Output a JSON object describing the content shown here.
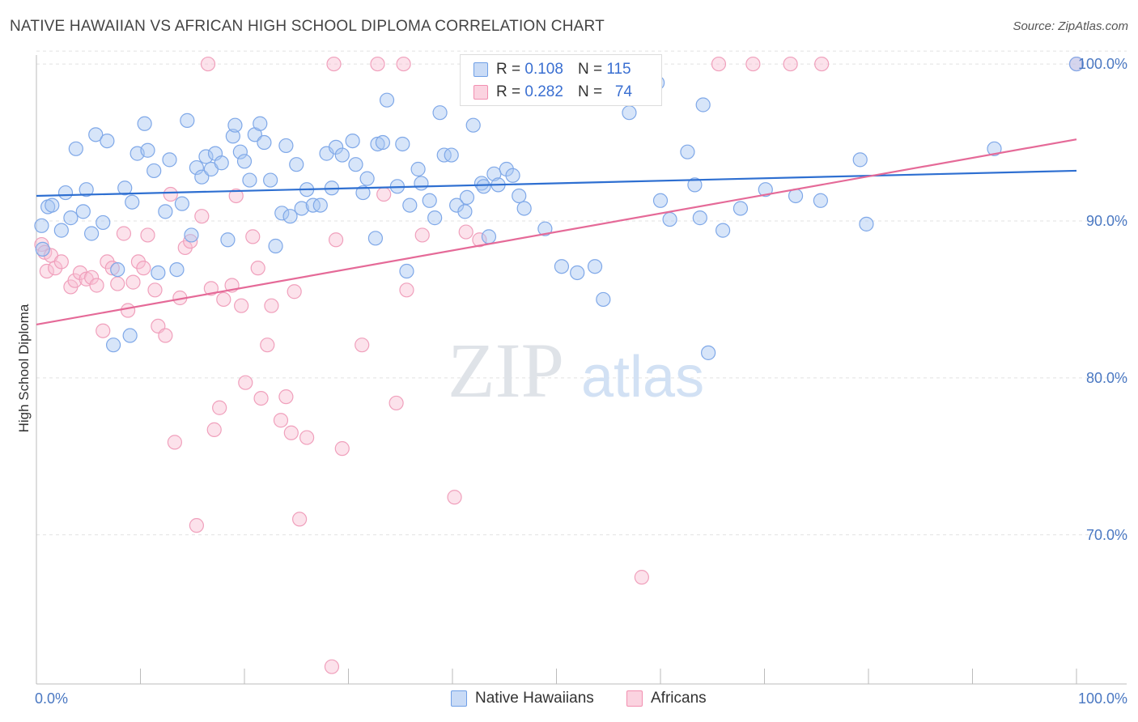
{
  "title": "NATIVE HAWAIIAN VS AFRICAN HIGH SCHOOL DIPLOMA CORRELATION CHART",
  "source": "Source: ZipAtlas.com",
  "watermark": {
    "zip": "ZIP",
    "atlas": "atlas"
  },
  "stats": [
    {
      "r_label": "R = ",
      "r_value": "0.108",
      "n_label": "N = ",
      "n_value": "115",
      "color": "#6f9fe6"
    },
    {
      "r_label": "R = ",
      "r_value": "0.282",
      "n_label": "N = ",
      "n_value": "74",
      "color": "#f28fb0"
    }
  ],
  "legend": [
    {
      "label": "Native Hawaiians",
      "color": "#6f9fe6"
    },
    {
      "label": "Africans",
      "color": "#f28fb0"
    }
  ],
  "chart_data": {
    "type": "scatter",
    "title": "NATIVE HAWAIIAN VS AFRICAN HIGH SCHOOL DIPLOMA CORRELATION CHART",
    "xlabel": "",
    "ylabel": "High School Diploma",
    "xlim": [
      0,
      100
    ],
    "ylim": [
      60.5,
      101.5
    ],
    "x_tick_labels": [
      "0.0%",
      "100.0%"
    ],
    "y_ticks": [
      70,
      80,
      90,
      100
    ],
    "y_tick_labels": [
      "70.0%",
      "80.0%",
      "90.0%",
      "100.0%"
    ],
    "grid": true,
    "legend_position": "bottom-center",
    "series": [
      {
        "name": "Native Hawaiians",
        "color": "#6f9fe6",
        "trend": {
          "x": [
            0,
            100
          ],
          "y": [
            91.6,
            93.2
          ]
        },
        "points": [
          [
            0.5,
            89.7
          ],
          [
            0.6,
            88.2
          ],
          [
            1.1,
            90.9
          ],
          [
            1.5,
            91.0
          ],
          [
            2.4,
            89.4
          ],
          [
            2.8,
            91.8
          ],
          [
            3.3,
            90.2
          ],
          [
            3.8,
            94.6
          ],
          [
            4.5,
            90.6
          ],
          [
            4.8,
            92.0
          ],
          [
            5.3,
            89.2
          ],
          [
            5.7,
            95.5
          ],
          [
            6.4,
            89.9
          ],
          [
            6.8,
            95.1
          ],
          [
            7.4,
            82.1
          ],
          [
            7.8,
            86.9
          ],
          [
            8.5,
            92.1
          ],
          [
            9.0,
            82.7
          ],
          [
            9.2,
            91.2
          ],
          [
            9.7,
            94.3
          ],
          [
            10.4,
            96.2
          ],
          [
            10.7,
            94.5
          ],
          [
            11.3,
            93.2
          ],
          [
            11.7,
            86.7
          ],
          [
            12.4,
            90.6
          ],
          [
            12.8,
            93.9
          ],
          [
            13.5,
            86.9
          ],
          [
            14.0,
            91.1
          ],
          [
            14.5,
            96.4
          ],
          [
            14.9,
            89.1
          ],
          [
            15.4,
            93.4
          ],
          [
            15.9,
            92.8
          ],
          [
            16.3,
            94.1
          ],
          [
            16.8,
            93.3
          ],
          [
            17.2,
            94.3
          ],
          [
            17.8,
            93.7
          ],
          [
            18.4,
            88.8
          ],
          [
            18.9,
            95.4
          ],
          [
            19.1,
            96.1
          ],
          [
            19.6,
            94.4
          ],
          [
            20.0,
            93.8
          ],
          [
            20.5,
            92.6
          ],
          [
            21.0,
            95.5
          ],
          [
            21.5,
            96.2
          ],
          [
            21.9,
            95.0
          ],
          [
            22.5,
            92.6
          ],
          [
            23.0,
            88.4
          ],
          [
            23.6,
            90.5
          ],
          [
            24.0,
            94.8
          ],
          [
            24.4,
            90.3
          ],
          [
            25.0,
            93.6
          ],
          [
            25.5,
            90.8
          ],
          [
            26.0,
            92.0
          ],
          [
            26.6,
            91.0
          ],
          [
            27.3,
            91.0
          ],
          [
            27.9,
            94.3
          ],
          [
            28.4,
            92.1
          ],
          [
            28.8,
            94.7
          ],
          [
            29.4,
            94.2
          ],
          [
            30.4,
            95.1
          ],
          [
            30.7,
            93.6
          ],
          [
            31.4,
            91.8
          ],
          [
            31.8,
            92.7
          ],
          [
            32.6,
            88.9
          ],
          [
            32.8,
            94.9
          ],
          [
            33.3,
            95.0
          ],
          [
            33.7,
            97.7
          ],
          [
            34.7,
            92.2
          ],
          [
            35.2,
            94.9
          ],
          [
            35.6,
            86.8
          ],
          [
            35.9,
            91.0
          ],
          [
            36.7,
            93.3
          ],
          [
            37.0,
            92.4
          ],
          [
            37.8,
            91.3
          ],
          [
            38.3,
            90.2
          ],
          [
            38.8,
            96.9
          ],
          [
            39.2,
            94.2
          ],
          [
            39.9,
            94.2
          ],
          [
            40.4,
            91.0
          ],
          [
            41.2,
            90.6
          ],
          [
            41.4,
            91.5
          ],
          [
            42.0,
            96.1
          ],
          [
            42.8,
            92.4
          ],
          [
            43.0,
            92.2
          ],
          [
            43.5,
            89.0
          ],
          [
            44.0,
            93.0
          ],
          [
            44.4,
            92.3
          ],
          [
            45.2,
            93.3
          ],
          [
            45.8,
            92.9
          ],
          [
            46.4,
            91.6
          ],
          [
            46.9,
            90.8
          ],
          [
            48.9,
            89.5
          ],
          [
            50.5,
            87.1
          ],
          [
            52.0,
            86.7
          ],
          [
            53.7,
            87.1
          ],
          [
            54.5,
            85.0
          ],
          [
            57.0,
            96.9
          ],
          [
            59.3,
            100.0
          ],
          [
            59.7,
            98.8
          ],
          [
            60.0,
            91.3
          ],
          [
            60.9,
            90.1
          ],
          [
            62.6,
            94.4
          ],
          [
            63.3,
            92.3
          ],
          [
            63.8,
            90.2
          ],
          [
            64.1,
            97.4
          ],
          [
            64.6,
            81.6
          ],
          [
            66.0,
            89.4
          ],
          [
            67.7,
            90.8
          ],
          [
            70.1,
            92.0
          ],
          [
            73.0,
            91.6
          ],
          [
            75.4,
            91.3
          ],
          [
            79.2,
            93.9
          ],
          [
            79.8,
            89.8
          ],
          [
            92.1,
            94.6
          ],
          [
            100.0,
            100.0
          ]
        ]
      },
      {
        "name": "Africans",
        "color": "#f28fb0",
        "trend": {
          "x": [
            0,
            100
          ],
          "y": [
            83.4,
            95.2
          ]
        },
        "points": [
          [
            0.5,
            88.5
          ],
          [
            0.8,
            88.0
          ],
          [
            1.0,
            86.8
          ],
          [
            1.4,
            87.8
          ],
          [
            1.8,
            87.0
          ],
          [
            2.4,
            87.4
          ],
          [
            3.3,
            85.8
          ],
          [
            3.7,
            86.2
          ],
          [
            4.2,
            86.7
          ],
          [
            4.8,
            86.3
          ],
          [
            5.3,
            86.4
          ],
          [
            5.8,
            85.9
          ],
          [
            6.4,
            83.0
          ],
          [
            6.8,
            87.4
          ],
          [
            7.3,
            87.0
          ],
          [
            7.8,
            86.0
          ],
          [
            8.4,
            89.2
          ],
          [
            8.8,
            84.3
          ],
          [
            9.3,
            86.1
          ],
          [
            9.8,
            87.4
          ],
          [
            10.3,
            87.0
          ],
          [
            10.7,
            89.1
          ],
          [
            11.4,
            85.6
          ],
          [
            11.7,
            83.3
          ],
          [
            12.4,
            82.7
          ],
          [
            12.9,
            91.7
          ],
          [
            13.3,
            75.9
          ],
          [
            13.8,
            85.1
          ],
          [
            14.3,
            88.3
          ],
          [
            14.8,
            88.7
          ],
          [
            15.4,
            70.6
          ],
          [
            15.9,
            90.3
          ],
          [
            16.5,
            100.0
          ],
          [
            16.8,
            85.7
          ],
          [
            17.1,
            76.7
          ],
          [
            17.6,
            78.1
          ],
          [
            18.0,
            85.0
          ],
          [
            18.8,
            85.9
          ],
          [
            19.2,
            91.6
          ],
          [
            19.7,
            84.6
          ],
          [
            20.1,
            79.7
          ],
          [
            20.8,
            89.0
          ],
          [
            21.3,
            87.0
          ],
          [
            21.6,
            78.7
          ],
          [
            22.2,
            82.1
          ],
          [
            22.6,
            84.6
          ],
          [
            23.5,
            77.3
          ],
          [
            24.0,
            78.8
          ],
          [
            24.5,
            76.5
          ],
          [
            24.8,
            85.5
          ],
          [
            25.3,
            71.0
          ],
          [
            26.0,
            76.2
          ],
          [
            28.4,
            61.6
          ],
          [
            28.8,
            88.8
          ],
          [
            29.4,
            75.5
          ],
          [
            28.6,
            100.0
          ],
          [
            31.3,
            82.1
          ],
          [
            32.8,
            100.0
          ],
          [
            33.4,
            91.7
          ],
          [
            34.6,
            78.4
          ],
          [
            35.3,
            100.0
          ],
          [
            35.6,
            85.6
          ],
          [
            37.1,
            89.1
          ],
          [
            40.2,
            72.4
          ],
          [
            41.3,
            89.3
          ],
          [
            42.6,
            88.8
          ],
          [
            54.3,
            100.0
          ],
          [
            55.8,
            99.3
          ],
          [
            58.2,
            67.3
          ],
          [
            65.6,
            100.0
          ],
          [
            68.9,
            100.0
          ],
          [
            72.5,
            100.0
          ],
          [
            75.5,
            100.0
          ],
          [
            100.0,
            100.0
          ]
        ]
      }
    ]
  }
}
